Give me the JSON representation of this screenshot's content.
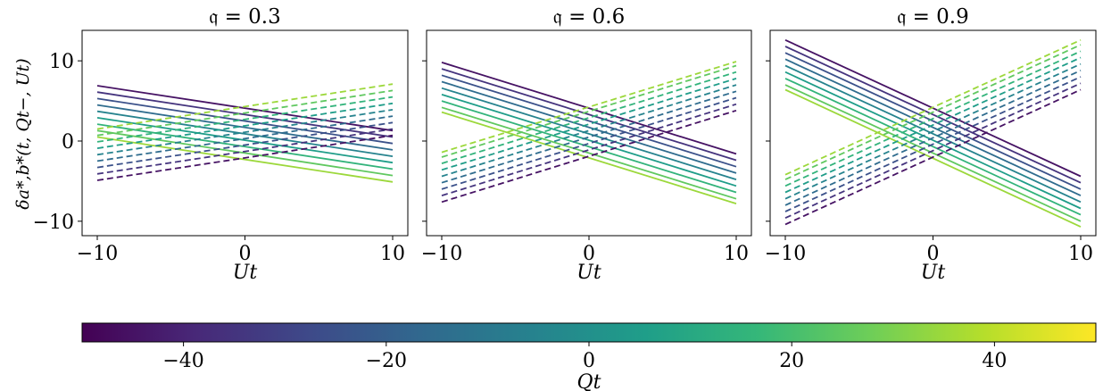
{
  "chart_data": {
    "type": "line",
    "ylabel": "δa*,b*(t, Qt−, Ut)",
    "panels": [
      {
        "title": "𝔮 = 0.3",
        "q": 0.3,
        "xlabel": "Ut",
        "xlim": [
          -10,
          10
        ],
        "ylim": [
          -11.8,
          13.8
        ],
        "xticks": [
          -10,
          0,
          10
        ],
        "yticks": [
          -10,
          0,
          10
        ],
        "series": [
          {
            "Qt": -45,
            "style": "solid",
            "x": [
              -10,
              10
            ],
            "y": [
              6.9,
              1.3
            ]
          },
          {
            "Qt": -35,
            "style": "solid",
            "x": [
              -10,
              10
            ],
            "y": [
              6.1,
              0.5
            ]
          },
          {
            "Qt": -25,
            "style": "solid",
            "x": [
              -10,
              10
            ],
            "y": [
              5.3,
              -0.3
            ]
          },
          {
            "Qt": -15,
            "style": "solid",
            "x": [
              -10,
              10
            ],
            "y": [
              4.5,
              -1.1
            ]
          },
          {
            "Qt": -5,
            "style": "solid",
            "x": [
              -10,
              10
            ],
            "y": [
              3.7,
              -1.9
            ]
          },
          {
            "Qt": 5,
            "style": "solid",
            "x": [
              -10,
              10
            ],
            "y": [
              2.9,
              -2.7
            ]
          },
          {
            "Qt": 15,
            "style": "solid",
            "x": [
              -10,
              10
            ],
            "y": [
              2.1,
              -3.5
            ]
          },
          {
            "Qt": 25,
            "style": "solid",
            "x": [
              -10,
              10
            ],
            "y": [
              1.3,
              -4.3
            ]
          },
          {
            "Qt": 35,
            "style": "solid",
            "x": [
              -10,
              10
            ],
            "y": [
              0.5,
              -5.1
            ]
          },
          {
            "Qt": -45,
            "style": "dashed",
            "x": [
              -10,
              10
            ],
            "y": [
              -4.9,
              0.7
            ]
          },
          {
            "Qt": -35,
            "style": "dashed",
            "x": [
              -10,
              10
            ],
            "y": [
              -4.1,
              1.5
            ]
          },
          {
            "Qt": -25,
            "style": "dashed",
            "x": [
              -10,
              10
            ],
            "y": [
              -3.3,
              2.3
            ]
          },
          {
            "Qt": -15,
            "style": "dashed",
            "x": [
              -10,
              10
            ],
            "y": [
              -2.5,
              3.1
            ]
          },
          {
            "Qt": -5,
            "style": "dashed",
            "x": [
              -10,
              10
            ],
            "y": [
              -1.7,
              3.9
            ]
          },
          {
            "Qt": 5,
            "style": "dashed",
            "x": [
              -10,
              10
            ],
            "y": [
              -0.9,
              4.7
            ]
          },
          {
            "Qt": 15,
            "style": "dashed",
            "x": [
              -10,
              10
            ],
            "y": [
              -0.1,
              5.5
            ]
          },
          {
            "Qt": 25,
            "style": "dashed",
            "x": [
              -10,
              10
            ],
            "y": [
              0.7,
              6.3
            ]
          },
          {
            "Qt": 35,
            "style": "dashed",
            "x": [
              -10,
              10
            ],
            "y": [
              1.5,
              7.1
            ]
          }
        ]
      },
      {
        "title": "𝔮 = 0.6",
        "q": 0.6,
        "xlabel": "Ut",
        "xlim": [
          -10,
          10
        ],
        "ylim": [
          -11.8,
          13.8
        ],
        "xticks": [
          -10,
          0,
          10
        ],
        "yticks": [
          -10,
          0,
          10
        ],
        "series": [
          {
            "Qt": -45,
            "style": "solid",
            "x": [
              -10,
              10
            ],
            "y": [
              9.8,
              -1.6
            ]
          },
          {
            "Qt": -35,
            "style": "solid",
            "x": [
              -10,
              10
            ],
            "y": [
              9.0,
              -2.4
            ]
          },
          {
            "Qt": -25,
            "style": "solid",
            "x": [
              -10,
              10
            ],
            "y": [
              8.2,
              -3.2
            ]
          },
          {
            "Qt": -15,
            "style": "solid",
            "x": [
              -10,
              10
            ],
            "y": [
              7.4,
              -4.0
            ]
          },
          {
            "Qt": -5,
            "style": "solid",
            "x": [
              -10,
              10
            ],
            "y": [
              6.6,
              -4.8
            ]
          },
          {
            "Qt": 5,
            "style": "solid",
            "x": [
              -10,
              10
            ],
            "y": [
              5.8,
              -5.6
            ]
          },
          {
            "Qt": 15,
            "style": "solid",
            "x": [
              -10,
              10
            ],
            "y": [
              5.0,
              -6.4
            ]
          },
          {
            "Qt": 25,
            "style": "solid",
            "x": [
              -10,
              10
            ],
            "y": [
              4.2,
              -7.2
            ]
          },
          {
            "Qt": 35,
            "style": "solid",
            "x": [
              -10,
              10
            ],
            "y": [
              3.6,
              -7.8
            ]
          },
          {
            "Qt": -45,
            "style": "dashed",
            "x": [
              -10,
              10
            ],
            "y": [
              -7.6,
              3.8
            ]
          },
          {
            "Qt": -35,
            "style": "dashed",
            "x": [
              -10,
              10
            ],
            "y": [
              -6.8,
              4.6
            ]
          },
          {
            "Qt": -25,
            "style": "dashed",
            "x": [
              -10,
              10
            ],
            "y": [
              -6.0,
              5.4
            ]
          },
          {
            "Qt": -15,
            "style": "dashed",
            "x": [
              -10,
              10
            ],
            "y": [
              -5.2,
              6.2
            ]
          },
          {
            "Qt": -5,
            "style": "dashed",
            "x": [
              -10,
              10
            ],
            "y": [
              -4.4,
              7.0
            ]
          },
          {
            "Qt": 5,
            "style": "dashed",
            "x": [
              -10,
              10
            ],
            "y": [
              -3.6,
              7.8
            ]
          },
          {
            "Qt": 15,
            "style": "dashed",
            "x": [
              -10,
              10
            ],
            "y": [
              -2.8,
              8.6
            ]
          },
          {
            "Qt": 25,
            "style": "dashed",
            "x": [
              -10,
              10
            ],
            "y": [
              -2.0,
              9.4
            ]
          },
          {
            "Qt": 35,
            "style": "dashed",
            "x": [
              -10,
              10
            ],
            "y": [
              -1.4,
              9.9
            ]
          }
        ]
      },
      {
        "title": "𝔮 = 0.9",
        "q": 0.9,
        "xlabel": "Ut",
        "xlim": [
          -10,
          10
        ],
        "ylim": [
          -11.8,
          13.8
        ],
        "xticks": [
          -10,
          0,
          10
        ],
        "yticks": [
          -10,
          0,
          10
        ],
        "series": [
          {
            "Qt": -45,
            "style": "solid",
            "x": [
              -10,
              10
            ],
            "y": [
              12.6,
              -4.4
            ]
          },
          {
            "Qt": -35,
            "style": "solid",
            "x": [
              -10,
              10
            ],
            "y": [
              11.8,
              -5.2
            ]
          },
          {
            "Qt": -25,
            "style": "solid",
            "x": [
              -10,
              10
            ],
            "y": [
              11.0,
              -6.0
            ]
          },
          {
            "Qt": -15,
            "style": "solid",
            "x": [
              -10,
              10
            ],
            "y": [
              10.2,
              -6.8
            ]
          },
          {
            "Qt": -5,
            "style": "solid",
            "x": [
              -10,
              10
            ],
            "y": [
              9.4,
              -7.6
            ]
          },
          {
            "Qt": 5,
            "style": "solid",
            "x": [
              -10,
              10
            ],
            "y": [
              8.6,
              -8.4
            ]
          },
          {
            "Qt": 15,
            "style": "solid",
            "x": [
              -10,
              10
            ],
            "y": [
              7.8,
              -9.2
            ]
          },
          {
            "Qt": 25,
            "style": "solid",
            "x": [
              -10,
              10
            ],
            "y": [
              7.0,
              -10.0
            ]
          },
          {
            "Qt": 35,
            "style": "solid",
            "x": [
              -10,
              10
            ],
            "y": [
              6.4,
              -10.7
            ]
          },
          {
            "Qt": -45,
            "style": "dashed",
            "x": [
              -10,
              10
            ],
            "y": [
              -10.4,
              6.4
            ]
          },
          {
            "Qt": -35,
            "style": "dashed",
            "x": [
              -10,
              10
            ],
            "y": [
              -9.6,
              7.2
            ]
          },
          {
            "Qt": -25,
            "style": "dashed",
            "x": [
              -10,
              10
            ],
            "y": [
              -8.8,
              8.0
            ]
          },
          {
            "Qt": -15,
            "style": "dashed",
            "x": [
              -10,
              10
            ],
            "y": [
              -8.0,
              8.8
            ]
          },
          {
            "Qt": -5,
            "style": "dashed",
            "x": [
              -10,
              10
            ],
            "y": [
              -7.2,
              9.6
            ]
          },
          {
            "Qt": 5,
            "style": "dashed",
            "x": [
              -10,
              10
            ],
            "y": [
              -6.4,
              10.4
            ]
          },
          {
            "Qt": 15,
            "style": "dashed",
            "x": [
              -10,
              10
            ],
            "y": [
              -5.6,
              11.2
            ]
          },
          {
            "Qt": 25,
            "style": "dashed",
            "x": [
              -10,
              10
            ],
            "y": [
              -4.8,
              12.0
            ]
          },
          {
            "Qt": 35,
            "style": "dashed",
            "x": [
              -10,
              10
            ],
            "y": [
              -4.2,
              12.6
            ]
          }
        ]
      }
    ],
    "colorbar": {
      "label": "Qt",
      "range": [
        -50,
        50
      ],
      "ticks": [
        -40,
        -20,
        0,
        20,
        40
      ],
      "tick_labels": [
        "−40",
        "−20",
        "0",
        "20",
        "40"
      ],
      "colormap": "viridis",
      "stops": [
        "#440154",
        "#482878",
        "#3e4989",
        "#31688e",
        "#26828e",
        "#1f9e89",
        "#35b779",
        "#6ece58",
        "#b5de2b",
        "#fde725"
      ]
    }
  }
}
